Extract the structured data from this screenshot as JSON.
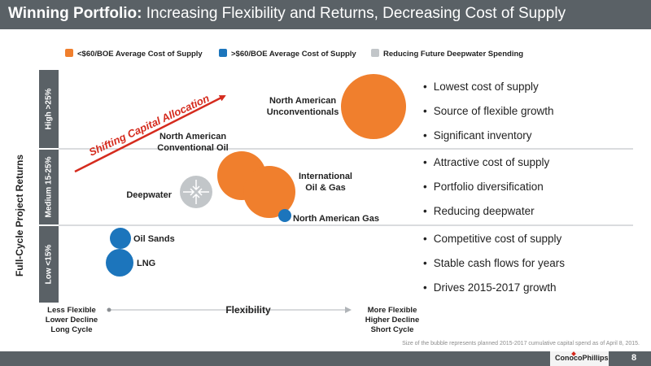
{
  "slide": {
    "title_bold": "Winning Portfolio:",
    "title_rest": " Increasing Flexibility and Returns, Decreasing Cost of Supply",
    "footnote": "Size of the bubble represents planned 2015-2017 cumulative capital spend as of April 8, 2015.",
    "logo": "ConocoPhillips",
    "page_number": "8"
  },
  "chart_data": {
    "type": "scatter",
    "title": "",
    "xlabel": "Flexibility",
    "ylabel": "Full-Cycle Project Returns",
    "x_left_label": [
      "Less Flexible",
      "Lower Decline",
      "Long Cycle"
    ],
    "x_right_label": [
      "More Flexible",
      "Higher Decline",
      "Short Cycle"
    ],
    "bands": [
      "High >25%",
      "Medium 15-25%",
      "Low <15%"
    ],
    "legend": [
      {
        "label": "<$60/BOE Average Cost of Supply",
        "color": "#f07f2d"
      },
      {
        "label": ">$60/BOE Average Cost of Supply",
        "color": "#1c75bc"
      },
      {
        "label": "Reducing Future Deepwater Spending",
        "color": "#c2c6c9"
      }
    ],
    "legend_position": "top",
    "grid": false,
    "arrow_annotation": "Shifting Capital Allocation",
    "series": [
      {
        "label": [
          "North American",
          "Unconventionals"
        ],
        "category": 0
      },
      {
        "label": [
          "North American",
          "Conventional Oil"
        ],
        "category": 0
      },
      {
        "label": [
          "International",
          "Oil & Gas"
        ],
        "category": 0
      },
      {
        "label": [
          "North American Gas"
        ],
        "category": 1
      },
      {
        "label": [
          "Deepwater"
        ],
        "category": 2
      },
      {
        "label": [
          "Oil Sands"
        ],
        "category": 1
      },
      {
        "label": [
          "LNG"
        ],
        "category": 1
      }
    ],
    "band_bullets": [
      [
        "Lowest cost of supply",
        "Source of flexible growth",
        "Significant inventory"
      ],
      [
        "Attractive cost of supply",
        "Portfolio diversification",
        "Reducing deepwater"
      ],
      [
        "Competitive cost of supply",
        "Stable cash flows for years",
        "Drives 2015-2017 growth"
      ]
    ]
  }
}
